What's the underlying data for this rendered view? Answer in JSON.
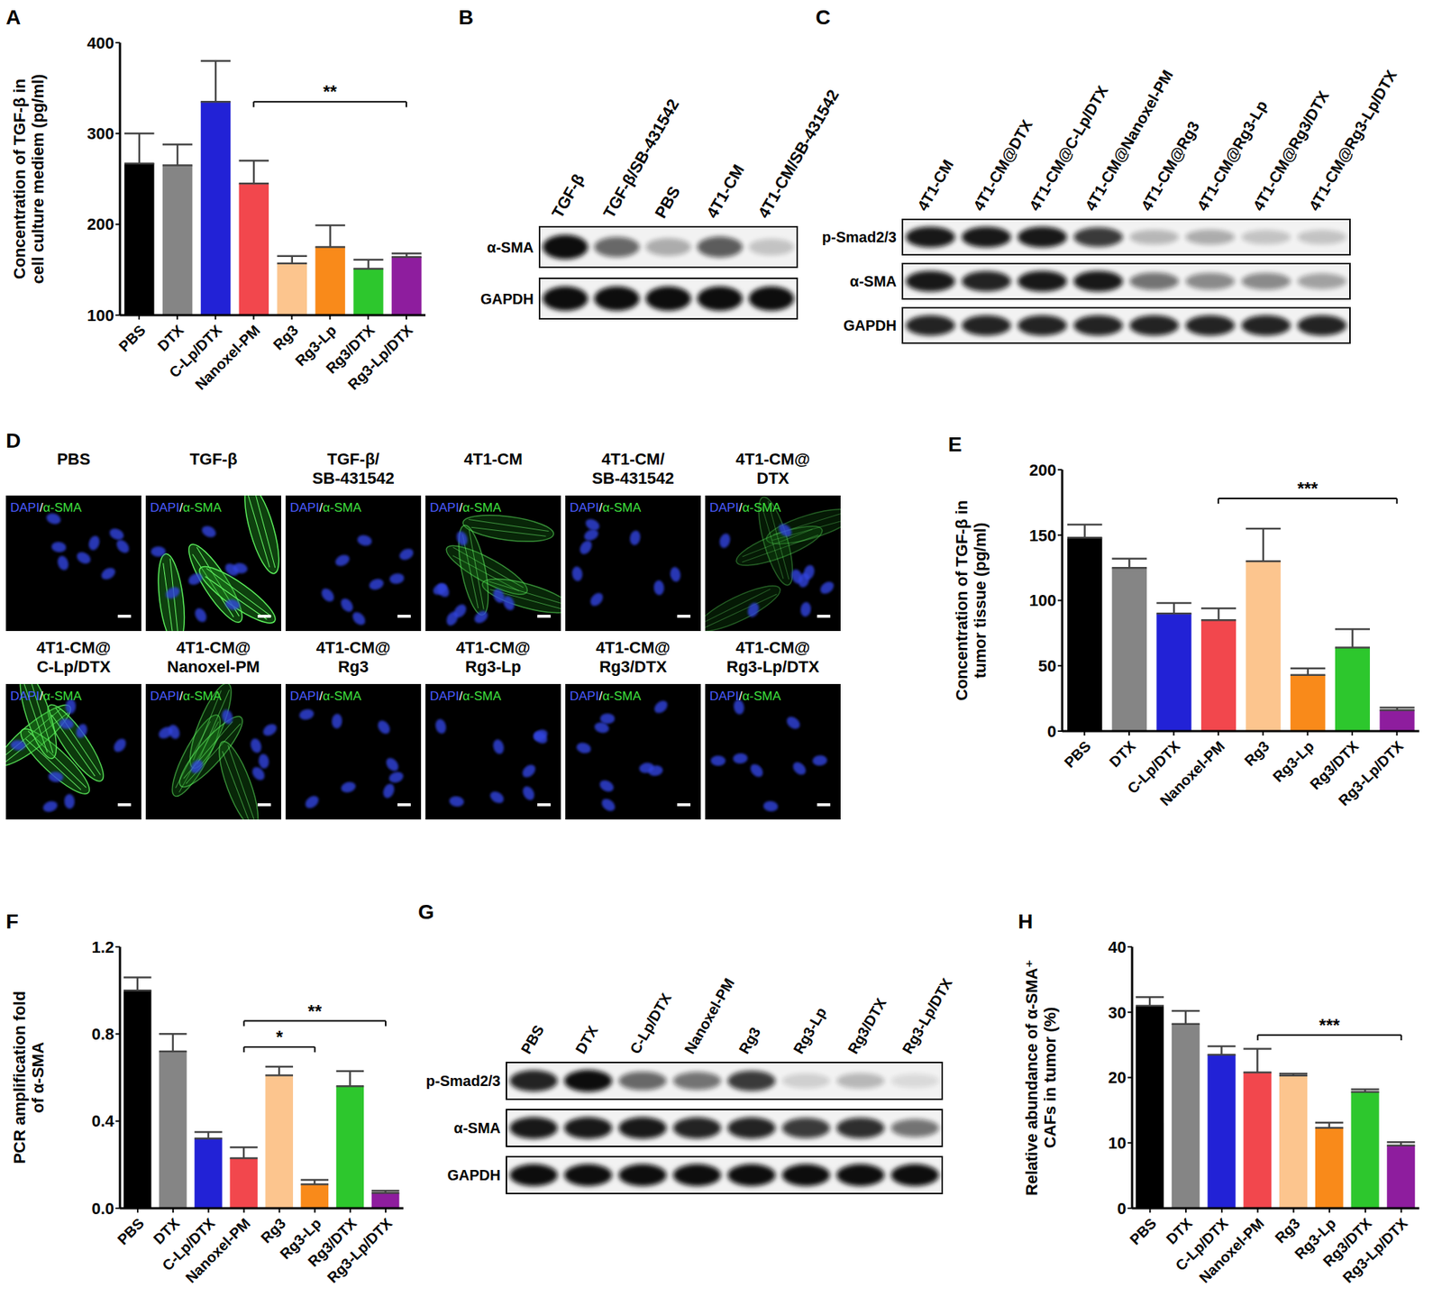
{
  "chart_data": [
    {
      "panel": "A",
      "type": "bar",
      "ylabel": [
        "Concentration of TGF-β in",
        "cell culture mediem (pg/ml)"
      ],
      "categories": [
        "PBS",
        "DTX",
        "C-Lp/DTX",
        "Nanoxel-PM",
        "Rg3",
        "Rg3-Lp",
        "Rg3/DTX",
        "Rg3-Lp/DTX"
      ],
      "values": [
        267,
        265,
        335,
        245,
        157,
        175,
        151,
        164
      ],
      "errors": [
        33,
        23,
        45,
        25,
        8,
        24,
        10,
        4
      ],
      "colors": [
        "#000000",
        "#858585",
        "#2222d6",
        "#f2474d",
        "#fcc58e",
        "#f98a1a",
        "#2dc72d",
        "#8e1d9e"
      ],
      "ylim": [
        100,
        400
      ],
      "yticks": [
        100,
        200,
        300,
        400
      ],
      "annotations": [
        {
          "from": "Nanoxel-PM",
          "to": "Rg3-Lp/DTX",
          "y": 335,
          "label": "**"
        }
      ]
    },
    {
      "panel": "E",
      "type": "bar",
      "ylabel": [
        "Concentration of TGF-β in",
        "tumor tissue (pg/ml)"
      ],
      "categories": [
        "PBS",
        "DTX",
        "C-Lp/DTX",
        "Nanoxel-PM",
        "Rg3",
        "Rg3-Lp",
        "Rg3/DTX",
        "Rg3-Lp/DTX"
      ],
      "values": [
        148,
        125,
        90,
        85,
        130,
        43,
        64,
        16
      ],
      "errors": [
        10,
        7,
        8,
        9,
        25,
        5,
        14,
        2
      ],
      "colors": [
        "#000000",
        "#858585",
        "#2222d6",
        "#f2474d",
        "#fcc58e",
        "#f98a1a",
        "#2dc72d",
        "#8e1d9e"
      ],
      "ylim": [
        0,
        200
      ],
      "yticks": [
        0,
        50,
        100,
        150,
        200
      ],
      "annotations": [
        {
          "from": "Nanoxel-PM",
          "to": "Rg3-Lp/DTX",
          "y": 178,
          "label": "***"
        }
      ]
    },
    {
      "panel": "F",
      "type": "bar",
      "ylabel": [
        "PCR amplification fold",
        "of α-SMA"
      ],
      "categories": [
        "PBS",
        "DTX",
        "C-Lp/DTX",
        "Nanoxel-PM",
        "Rg3",
        "Rg3-Lp",
        "Rg3/DTX",
        "Rg3-Lp/DTX"
      ],
      "values": [
        1.0,
        0.72,
        0.32,
        0.23,
        0.61,
        0.11,
        0.56,
        0.07
      ],
      "errors": [
        0.06,
        0.08,
        0.03,
        0.05,
        0.04,
        0.02,
        0.07,
        0.01
      ],
      "colors": [
        "#000000",
        "#858585",
        "#2222d6",
        "#f2474d",
        "#fcc58e",
        "#f98a1a",
        "#2dc72d",
        "#8e1d9e"
      ],
      "ylim": [
        0,
        1.2
      ],
      "yticks": [
        {
          "value": 0,
          "label": "0.0"
        },
        0.4,
        0.8,
        1.2
      ],
      "annotations": [
        {
          "from": "Nanoxel-PM",
          "to": "Rg3-Lp",
          "y": 0.74,
          "label": "*"
        },
        {
          "from": "Nanoxel-PM",
          "to": "Rg3-Lp/DTX",
          "y": 0.86,
          "label": "**"
        }
      ]
    },
    {
      "panel": "H",
      "type": "bar",
      "ylabel": [
        "Relative abundance of α-SMA⁺",
        "CAFs in tumor (%)"
      ],
      "categories": [
        "PBS",
        "DTX",
        "C-Lp/DTX",
        "Nanoxel-PM",
        "Rg3",
        "Rg3-Lp",
        "Rg3/DTX",
        "Rg3-Lp/DTX"
      ],
      "values": [
        31,
        28.2,
        23.5,
        20.8,
        20.3,
        12.3,
        17.8,
        9.6
      ],
      "errors": [
        1.3,
        2,
        1.3,
        3.6,
        0.3,
        0.8,
        0.4,
        0.5
      ],
      "colors": [
        "#000000",
        "#858585",
        "#2222d6",
        "#f2474d",
        "#fcc58e",
        "#f98a1a",
        "#2dc72d",
        "#8e1d9e"
      ],
      "ylim": [
        0,
        40
      ],
      "yticks": [
        0,
        10,
        20,
        30,
        40
      ],
      "annotations": [
        {
          "from": "Nanoxel-PM",
          "to": "Rg3-Lp/DTX",
          "y": 26.5,
          "label": "***"
        }
      ]
    }
  ],
  "blots": [
    {
      "panel": "B",
      "lanes": [
        "TGF-β",
        "TGF-β/SB-431542",
        "PBS",
        "4T1-CM",
        "4T1-CM/SB-431542"
      ],
      "rows": [
        {
          "label": "α-SMA",
          "intensity": [
            1,
            0.6,
            0.3,
            0.65,
            0.2
          ]
        },
        {
          "label": "GAPDH",
          "intensity": [
            1,
            1,
            1,
            1,
            1
          ]
        }
      ]
    },
    {
      "panel": "C",
      "lanes": [
        "4T1-CM",
        "4T1-CM@DTX",
        "4T1-CM@C-Lp/DTX",
        "4T1-CM@Nanoxel-PM",
        "4T1-CM@Rg3",
        "4T1-CM@Rg3-Lp",
        "4T1-CM@Rg3/DTX",
        "4T1-CM@Rg3-Lp/DTX"
      ],
      "rows": [
        {
          "label": "p-Smad2/3",
          "intensity": [
            0.95,
            0.95,
            0.95,
            0.8,
            0.25,
            0.3,
            0.2,
            0.2
          ]
        },
        {
          "label": "α-SMA",
          "intensity": [
            0.95,
            0.9,
            0.95,
            0.95,
            0.55,
            0.45,
            0.45,
            0.35
          ]
        },
        {
          "label": "GAPDH",
          "intensity": [
            0.9,
            0.9,
            0.9,
            0.9,
            0.9,
            0.9,
            0.9,
            0.9
          ]
        }
      ]
    },
    {
      "panel": "G",
      "lanes": [
        "PBS",
        "DTX",
        "C-Lp/DTX",
        "Nanoxel-PM",
        "Rg3",
        "Rg3-Lp",
        "Rg3/DTX",
        "Rg3-Lp/DTX"
      ],
      "rows": [
        {
          "label": "p-Smad2/3",
          "intensity": [
            0.9,
            1,
            0.6,
            0.55,
            0.8,
            0.15,
            0.25,
            0.1
          ]
        },
        {
          "label": "α-SMA",
          "intensity": [
            0.95,
            0.95,
            0.95,
            0.9,
            0.9,
            0.8,
            0.85,
            0.55
          ]
        },
        {
          "label": "GAPDH",
          "intensity": [
            1,
            1,
            1,
            1,
            1,
            1,
            1,
            1
          ]
        }
      ]
    }
  ],
  "images": {
    "panel": "D",
    "stain": [
      "DAPI",
      "/",
      "α-SMA"
    ],
    "panels": [
      {
        "title": [
          "PBS"
        ],
        "signal": 0
      },
      {
        "title": [
          "TGF-β"
        ],
        "signal": 1
      },
      {
        "title": [
          "TGF-β/",
          "SB-431542"
        ],
        "signal": 0
      },
      {
        "title": [
          "4T1-CM"
        ],
        "signal": 0.6
      },
      {
        "title": [
          "4T1-CM/",
          "SB-431542"
        ],
        "signal": 0
      },
      {
        "title": [
          "4T1-CM@",
          "DTX"
        ],
        "signal": 0.4
      },
      {
        "title": [
          "4T1-CM@",
          "C-Lp/DTX"
        ],
        "signal": 0.9
      },
      {
        "title": [
          "4T1-CM@",
          "Nanoxel-PM"
        ],
        "signal": 0.6
      },
      {
        "title": [
          "4T1-CM@",
          "Rg3"
        ],
        "signal": 0
      },
      {
        "title": [
          "4T1-CM@",
          "Rg3-Lp"
        ],
        "signal": 0
      },
      {
        "title": [
          "4T1-CM@",
          "Rg3/DTX"
        ],
        "signal": 0
      },
      {
        "title": [
          "4T1-CM@",
          "Rg3-Lp/DTX"
        ],
        "signal": 0
      }
    ]
  }
}
